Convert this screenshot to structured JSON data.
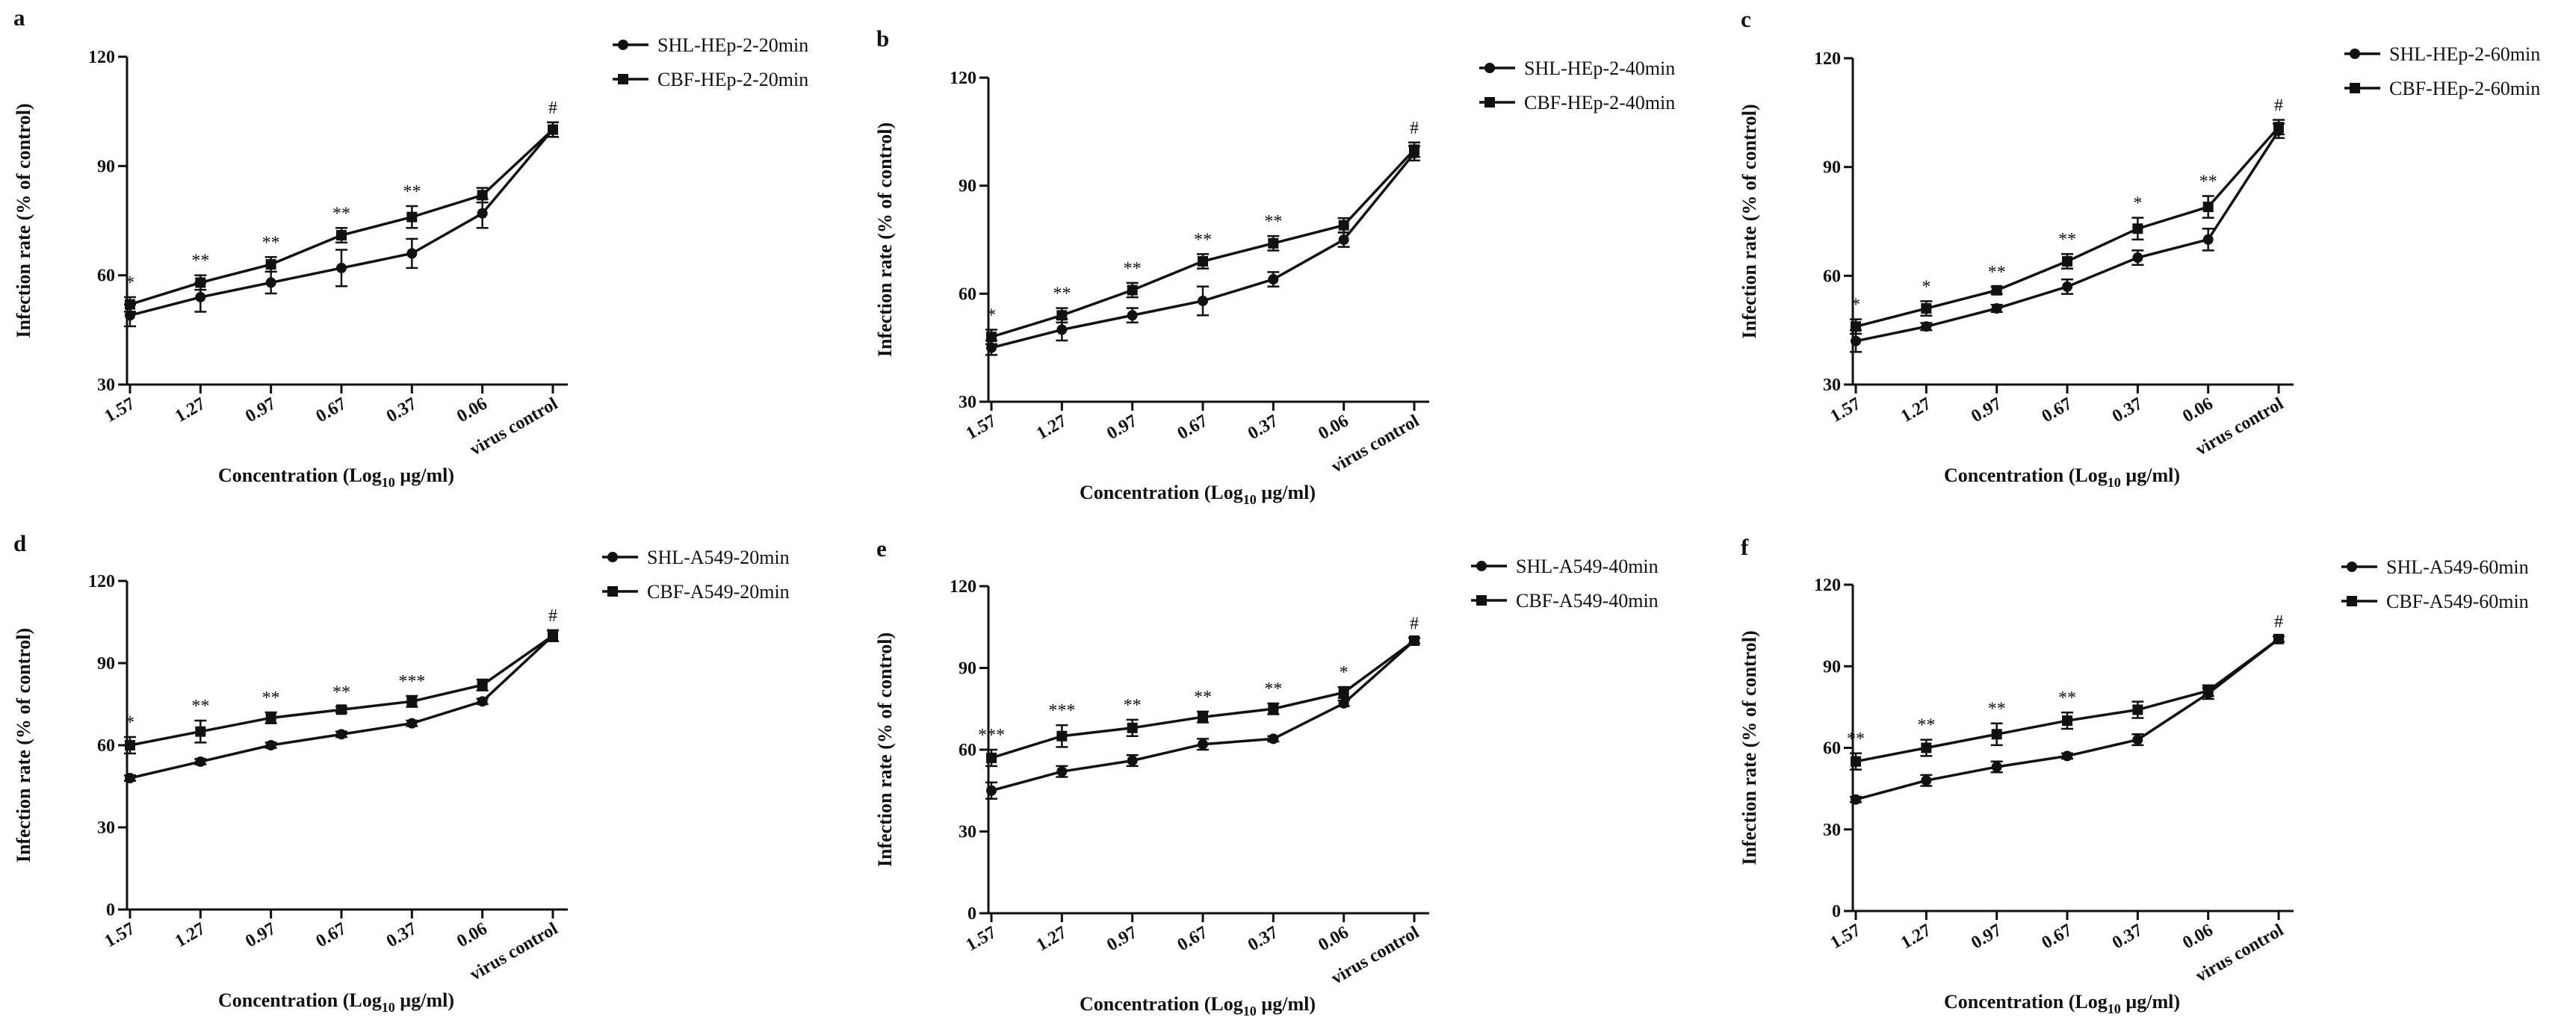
{
  "figure": {
    "xlabel_main": "Concentration (Log",
    "xlabel_sub": "10",
    "xlabel_tail": " µg/ml)",
    "ylabel": "Infection rate (% of control)"
  },
  "chart_data": [
    {
      "panel": "a",
      "type": "line",
      "categories": [
        "1.57",
        "1.27",
        "0.97",
        "0.67",
        "0.37",
        "0.06",
        "virus control"
      ],
      "ylim": [
        30,
        120
      ],
      "yticks": [
        30,
        60,
        90,
        120
      ],
      "xlabel": "Concentration (Log10 µg/ml)",
      "ylabel": "Infection rate (% of control)",
      "legend_position": "top-right",
      "series": [
        {
          "name": "SHL-HEp-2-20min",
          "marker": "circle",
          "values": [
            49,
            54,
            58,
            62,
            66,
            77,
            100
          ],
          "errors": [
            3,
            4,
            3,
            5,
            4,
            4,
            2
          ]
        },
        {
          "name": "CBF-HEp-2-20min",
          "marker": "square",
          "values": [
            52,
            58,
            63,
            71,
            76,
            82,
            100
          ],
          "errors": [
            2,
            2,
            2,
            2,
            3,
            2,
            2
          ]
        }
      ],
      "annotations": [
        "*",
        "**",
        "**",
        "**",
        "**",
        "",
        "#"
      ]
    },
    {
      "panel": "b",
      "type": "line",
      "categories": [
        "1.57",
        "1.27",
        "0.97",
        "0.67",
        "0.37",
        "0.06",
        "virus control"
      ],
      "ylim": [
        30,
        120
      ],
      "yticks": [
        30,
        60,
        90,
        120
      ],
      "xlabel": "Concentration (Log10 µg/ml)",
      "ylabel": "Infection rate (% of control)",
      "legend_position": "top-right",
      "series": [
        {
          "name": "SHL-HEp-2-40min",
          "marker": "circle",
          "values": [
            45,
            50,
            54,
            58,
            64,
            75,
            99
          ],
          "errors": [
            2,
            3,
            2,
            4,
            2,
            2,
            2
          ]
        },
        {
          "name": "CBF-HEp-2-40min",
          "marker": "square",
          "values": [
            48,
            54,
            61,
            69,
            74,
            79,
            100
          ],
          "errors": [
            2,
            2,
            2,
            2,
            2,
            2,
            2
          ]
        }
      ],
      "annotations": [
        "*",
        "**",
        "**",
        "**",
        "**",
        "",
        "#"
      ]
    },
    {
      "panel": "c",
      "type": "line",
      "categories": [
        "1.57",
        "1.27",
        "0.97",
        "0.67",
        "0.37",
        "0.06",
        "virus control"
      ],
      "ylim": [
        30,
        120
      ],
      "yticks": [
        30,
        60,
        90,
        120
      ],
      "xlabel": "Concentration (Log10 µg/ml)",
      "ylabel": "Infection rate (% of control)",
      "legend_position": "top-right",
      "series": [
        {
          "name": "SHL-HEp-2-60min",
          "marker": "circle",
          "values": [
            42,
            46,
            51,
            57,
            65,
            70,
            100
          ],
          "errors": [
            3,
            1,
            1,
            2,
            2,
            3,
            2
          ]
        },
        {
          "name": "CBF-HEp-2-60min",
          "marker": "square",
          "values": [
            46,
            51,
            56,
            64,
            73,
            79,
            101
          ],
          "errors": [
            2,
            2,
            1,
            2,
            3,
            3,
            2
          ]
        }
      ],
      "annotations": [
        "*",
        "*",
        "**",
        "**",
        "*",
        "**",
        "#"
      ]
    },
    {
      "panel": "d",
      "type": "line",
      "categories": [
        "1.57",
        "1.27",
        "0.97",
        "0.67",
        "0.37",
        "0.06",
        "virus control"
      ],
      "ylim": [
        0,
        120
      ],
      "yticks": [
        0,
        30,
        60,
        90,
        120
      ],
      "xlabel": "Concentration (Log10 µg/ml)",
      "ylabel": "Infection rate (% of control)",
      "legend_position": "top-right",
      "series": [
        {
          "name": "SHL-A549-20min",
          "marker": "circle",
          "values": [
            48,
            54,
            60,
            64,
            68,
            76,
            100
          ],
          "errors": [
            1,
            1,
            1,
            1,
            1,
            1,
            2
          ]
        },
        {
          "name": "CBF-A549-20min",
          "marker": "square",
          "values": [
            60,
            65,
            70,
            73,
            76,
            82,
            100
          ],
          "errors": [
            3,
            4,
            2,
            1,
            2,
            2,
            2
          ]
        }
      ],
      "annotations": [
        "*",
        "**",
        "**",
        "**",
        "***",
        "",
        "#"
      ]
    },
    {
      "panel": "e",
      "type": "line",
      "categories": [
        "1.57",
        "1.27",
        "0.97",
        "0.67",
        "0.37",
        "0.06",
        "virus control"
      ],
      "ylim": [
        0,
        120
      ],
      "yticks": [
        0,
        30,
        60,
        90,
        120
      ],
      "xlabel": "Concentration (Log10 µg/ml)",
      "ylabel": "Infection rate (% of control)",
      "legend_position": "top-right",
      "series": [
        {
          "name": "SHL-A549-40min",
          "marker": "circle",
          "values": [
            45,
            52,
            56,
            62,
            64,
            77,
            100
          ],
          "errors": [
            3,
            2,
            2,
            2,
            1,
            1,
            1
          ]
        },
        {
          "name": "CBF-A549-40min",
          "marker": "square",
          "values": [
            57,
            65,
            68,
            72,
            75,
            81,
            100
          ],
          "errors": [
            3,
            4,
            3,
            2,
            2,
            2,
            1
          ]
        }
      ],
      "annotations": [
        "***",
        "***",
        "**",
        "**",
        "**",
        "*",
        "#"
      ]
    },
    {
      "panel": "f",
      "type": "line",
      "categories": [
        "1.57",
        "1.27",
        "0.97",
        "0.67",
        "0.37",
        "0.06",
        "virus control"
      ],
      "ylim": [
        0,
        120
      ],
      "yticks": [
        0,
        30,
        60,
        90,
        120
      ],
      "xlabel": "Concentration (Log10 µg/ml)",
      "ylabel": "Infection rate (% of control)",
      "legend_position": "top-right",
      "series": [
        {
          "name": "SHL-A549-60min",
          "marker": "circle",
          "values": [
            41,
            48,
            53,
            57,
            63,
            80,
            100
          ],
          "errors": [
            1,
            2,
            2,
            1,
            2,
            2,
            1
          ]
        },
        {
          "name": "CBF-A549-60min",
          "marker": "square",
          "values": [
            55,
            60,
            65,
            70,
            74,
            81,
            100
          ],
          "errors": [
            3,
            3,
            4,
            3,
            3,
            2,
            1
          ]
        }
      ],
      "annotations": [
        "**",
        "**",
        "**",
        "**",
        "",
        "",
        "#"
      ]
    }
  ]
}
